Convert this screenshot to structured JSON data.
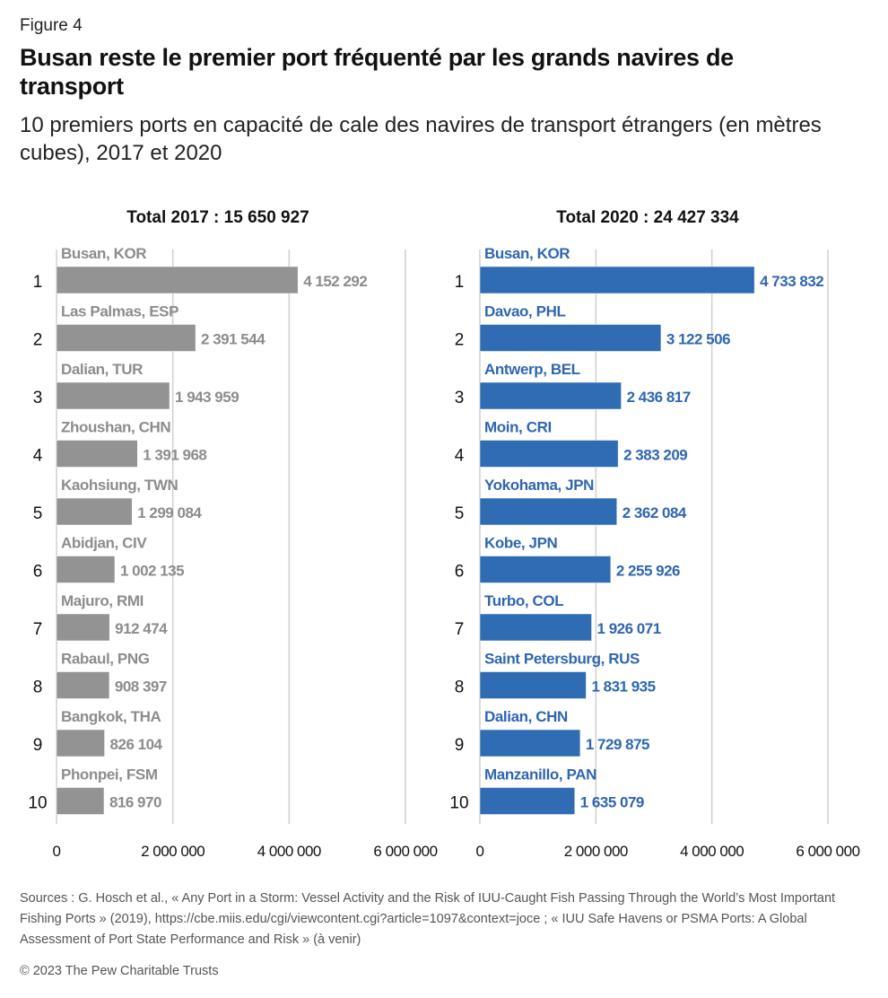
{
  "header": {
    "figure_label": "Figure 4",
    "title": "Busan reste le premier port fréquenté par les grands navires de transport",
    "subtitle": "10 premiers ports en capacité de cale des navires de transport étrangers (en mètres cubes), 2017 et 2020"
  },
  "colors": {
    "bar_2017": "#939393",
    "label_2017": "#8c8c8c",
    "bar_2020": "#306cb4",
    "label_2020": "#2f66b0",
    "gridline": "#cfcfcf"
  },
  "chart_data": [
    {
      "type": "bar",
      "orientation": "horizontal",
      "title": "Total 2017 : 15 650 927",
      "ranks": [
        "1",
        "2",
        "3",
        "4",
        "5",
        "6",
        "7",
        "8",
        "9",
        "10"
      ],
      "categories": [
        "Busan, KOR",
        "Las Palmas, ESP",
        "Dalian, TUR",
        "Zhoushan, CHN",
        "Kaohsiung, TWN",
        "Abidjan, CIV",
        "Majuro, RMI",
        "Rabaul, PNG",
        "Bangkok, THA",
        "Phonpei, FSM"
      ],
      "values": [
        4152292,
        2391544,
        1943959,
        1391968,
        1299084,
        1002135,
        912474,
        908397,
        826104,
        816970
      ],
      "value_labels": [
        "4 152 292",
        "2 391 544",
        "1 943 959",
        "1 391 968",
        "1 299 084",
        "1 002 135",
        "912 474",
        "908 397",
        "826 104",
        "816 970"
      ],
      "xlim": [
        0,
        6000000
      ],
      "xticks": [
        0,
        2000000,
        4000000,
        6000000
      ],
      "xtick_labels": [
        "0",
        "2 000 000",
        "4 000 000",
        "6 000 000"
      ],
      "grid": true
    },
    {
      "type": "bar",
      "orientation": "horizontal",
      "title": "Total 2020 : 24 427 334",
      "ranks": [
        "1",
        "2",
        "3",
        "4",
        "5",
        "6",
        "7",
        "8",
        "9",
        "10"
      ],
      "categories": [
        "Busan, KOR",
        "Davao, PHL",
        "Antwerp, BEL",
        "Moin, CRI",
        "Yokohama, JPN",
        "Kobe, JPN",
        "Turbo, COL",
        "Saint Petersburg, RUS",
        "Dalian, CHN",
        "Manzanillo, PAN"
      ],
      "values": [
        4733832,
        3122506,
        2436817,
        2383209,
        2362084,
        2255926,
        1926071,
        1831935,
        1729875,
        1635079
      ],
      "value_labels": [
        "4 733 832",
        "3 122 506",
        "2 436 817",
        "2 383 209",
        "2 362 084",
        "2 255 926",
        "1 926 071",
        "1 831 935",
        "1 729 875",
        "1 635 079"
      ],
      "xlim": [
        0,
        6000000
      ],
      "xticks": [
        0,
        2000000,
        4000000,
        6000000
      ],
      "xtick_labels": [
        "0",
        "2 000 000",
        "4 000 000",
        "6 000 000"
      ],
      "grid": true
    }
  ],
  "footer": {
    "sources": "Sources : G. Hosch et al., « Any Port in a Storm: Vessel Activity and the Risk of IUU-Caught Fish Passing Through the World’s Most Important Fishing Ports » (2019), https://cbe.miis.edu/cgi/viewcontent.cgi?article=1097&context=joce ; « IUU Safe Havens or PSMA Ports: A Global Assessment of Port State Performance and Risk » (à venir)",
    "copyright": "© 2023 The Pew Charitable Trusts"
  }
}
